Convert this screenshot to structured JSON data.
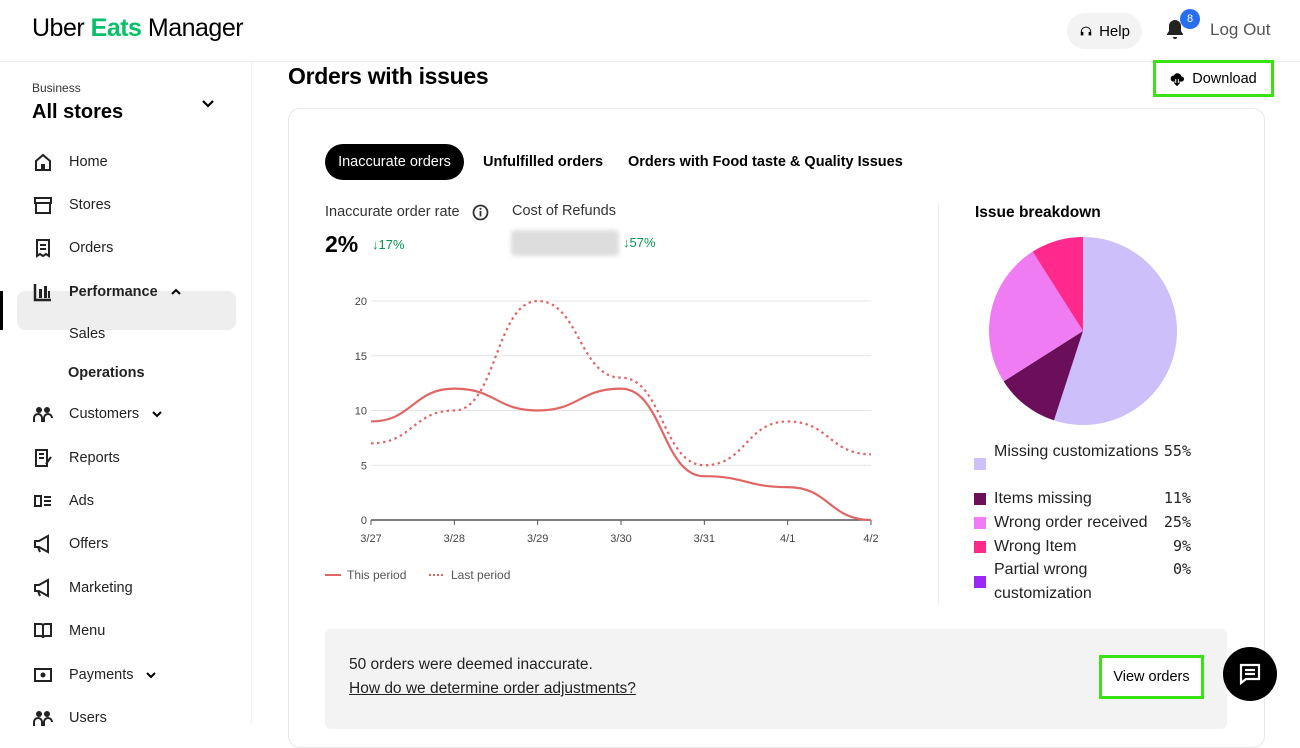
{
  "header": {
    "logo_left": "Uber ",
    "logo_eats": "Eats",
    "logo_right": " Manager",
    "help_label": "Help",
    "notification_count": "8",
    "logout_label": "Log Out"
  },
  "sidebar": {
    "business_label": "Business",
    "business_name": "All stores",
    "items": [
      {
        "label": "Home",
        "icon": "home-icon"
      },
      {
        "label": "Stores",
        "icon": "store-icon"
      },
      {
        "label": "Orders",
        "icon": "receipt-icon"
      },
      {
        "label": "Performance",
        "icon": "bar-chart-icon"
      },
      {
        "label": "Sales"
      },
      {
        "label": "Operations"
      },
      {
        "label": "Customers",
        "icon": "people-icon"
      },
      {
        "label": "Reports",
        "icon": "report-icon"
      },
      {
        "label": "Ads",
        "icon": "ads-icon"
      },
      {
        "label": "Offers",
        "icon": "megaphone-icon"
      },
      {
        "label": "Marketing",
        "icon": "megaphone-icon"
      },
      {
        "label": "Menu",
        "icon": "book-icon"
      },
      {
        "label": "Payments",
        "icon": "payments-icon"
      },
      {
        "label": "Users",
        "icon": "users-icon"
      }
    ]
  },
  "main": {
    "title": "Orders with issues",
    "download_label": "Download",
    "tabs": [
      "Inaccurate orders",
      "Unfulfilled orders",
      "Orders with Food taste & Quality Issues"
    ],
    "metric1_label": "Inaccurate order rate",
    "metric1_value": "2%",
    "metric1_delta": "↓17%",
    "metric2_label": "Cost of Refunds",
    "metric2_delta": "↓57%",
    "legend_this": "This period",
    "legend_last": "Last period",
    "footer_text": "50 orders were deemed inaccurate.",
    "footer_link": "How do we determine order adjustments?",
    "view_orders_label": "View orders"
  },
  "breakdown": {
    "title": "Issue breakdown",
    "items": [
      {
        "label": "Missing customizations",
        "pct": "55%",
        "value": 55,
        "color": "#cdbffa"
      },
      {
        "label": "Items missing",
        "pct": "11%",
        "value": 11,
        "color": "#6b0f5b"
      },
      {
        "label": "Wrong order received",
        "pct": "25%",
        "value": 25,
        "color": "#f07cf3"
      },
      {
        "label": "Wrong Item",
        "pct": "9%",
        "value": 9,
        "color": "#ff2a8b"
      },
      {
        "label": "Partial wrong customization",
        "pct": "0%",
        "value": 0,
        "color": "#9b28f5"
      }
    ]
  },
  "chart_data": {
    "type": "line",
    "categories": [
      "3/27",
      "3/28",
      "3/29",
      "3/30",
      "3/31",
      "4/1",
      "4/2"
    ],
    "ylim": [
      0,
      20
    ],
    "yticks": [
      0,
      5,
      10,
      15,
      20
    ],
    "series": [
      {
        "name": "This period",
        "values": [
          9,
          12,
          10,
          12,
          4,
          3,
          0
        ],
        "color": "#e06666",
        "style": "solid"
      },
      {
        "name": "Last period",
        "values": [
          7,
          10,
          20,
          13,
          5,
          9,
          6
        ],
        "color": "#e06666",
        "style": "dotted"
      }
    ]
  }
}
